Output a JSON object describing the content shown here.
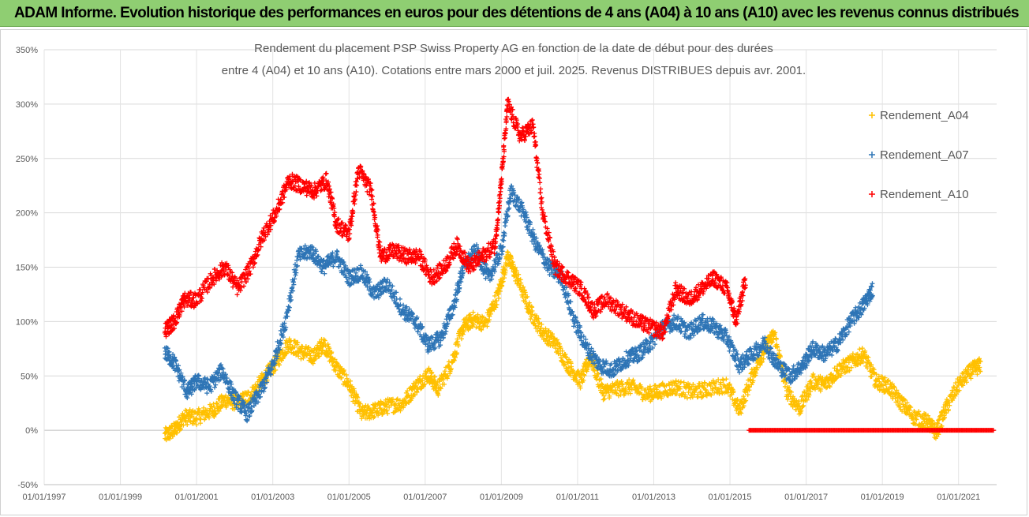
{
  "banner": {
    "text": "ADAM Informe. Evolution historique des performances en euros pour des détentions de 4 ans (A04) à 10 ans (A10) avec les revenus connus distribués"
  },
  "chart_data": {
    "type": "scatter",
    "title_line1": "Rendement du placement PSP Swiss Property AG en fonction de la date de début pour des durées",
    "title_line2": "entre 4 (A04) et 10 ans (A10). Cotations entre mars 2000 et juil. 2025. Revenus DISTRIBUES depuis avr. 2001.",
    "y_ticks": [
      "350%",
      "300%",
      "250%",
      "200%",
      "150%",
      "100%",
      "50%",
      "0%",
      "-50%"
    ],
    "x_ticks": [
      "01/01/1997",
      "01/01/1999",
      "01/01/2001",
      "01/01/2003",
      "01/01/2005",
      "01/01/2007",
      "01/01/2009",
      "01/01/2011",
      "01/01/2013",
      "01/01/2015",
      "01/01/2017",
      "01/01/2019",
      "01/01/2021"
    ],
    "ylim": [
      -50,
      350
    ],
    "xlim": [
      "1997-01-01",
      "2022-01-01"
    ],
    "grid": true,
    "legend_position": "right",
    "marker": "+",
    "series": [
      {
        "name": "Rendement_A04",
        "color": "#ffc000",
        "points": [
          [
            "2000-03",
            -5
          ],
          [
            "2000-06",
            0
          ],
          [
            "2000-09",
            12
          ],
          [
            "2001-01",
            12
          ],
          [
            "2001-06",
            18
          ],
          [
            "2001-10",
            28
          ],
          [
            "2002-02",
            25
          ],
          [
            "2002-06",
            32
          ],
          [
            "2002-10",
            47
          ],
          [
            "2003-02",
            62
          ],
          [
            "2003-06",
            80
          ],
          [
            "2003-10",
            72
          ],
          [
            "2004-02",
            68
          ],
          [
            "2004-05",
            80
          ],
          [
            "2004-09",
            58
          ],
          [
            "2005-01",
            42
          ],
          [
            "2005-05",
            15
          ],
          [
            "2005-09",
            18
          ],
          [
            "2006-01",
            22
          ],
          [
            "2006-06",
            25
          ],
          [
            "2006-10",
            40
          ],
          [
            "2007-02",
            52
          ],
          [
            "2007-05",
            38
          ],
          [
            "2007-09",
            60
          ],
          [
            "2008-01",
            95
          ],
          [
            "2008-04",
            102
          ],
          [
            "2008-08",
            98
          ],
          [
            "2008-12",
            125
          ],
          [
            "2009-03",
            160
          ],
          [
            "2009-06",
            140
          ],
          [
            "2009-10",
            110
          ],
          [
            "2010-02",
            90
          ],
          [
            "2010-06",
            80
          ],
          [
            "2010-10",
            60
          ],
          [
            "2011-02",
            45
          ],
          [
            "2011-05",
            68
          ],
          [
            "2011-09",
            35
          ],
          [
            "2012-01",
            38
          ],
          [
            "2012-06",
            40
          ],
          [
            "2012-11",
            33
          ],
          [
            "2013-03",
            36
          ],
          [
            "2013-08",
            40
          ],
          [
            "2014-01",
            35
          ],
          [
            "2014-06",
            38
          ],
          [
            "2014-12",
            42
          ],
          [
            "2015-04",
            18
          ],
          [
            "2015-08",
            50
          ],
          [
            "2015-12",
            75
          ],
          [
            "2016-03",
            88
          ],
          [
            "2016-07",
            35
          ],
          [
            "2016-11",
            20
          ],
          [
            "2017-03",
            45
          ],
          [
            "2017-07",
            42
          ],
          [
            "2017-11",
            55
          ],
          [
            "2018-03",
            62
          ],
          [
            "2018-07",
            70
          ],
          [
            "2018-11",
            45
          ],
          [
            "2019-03",
            40
          ],
          [
            "2019-07",
            25
          ],
          [
            "2019-11",
            12
          ],
          [
            "2020-03",
            8
          ],
          [
            "2020-06",
            -2
          ],
          [
            "2020-09",
            20
          ],
          [
            "2021-01",
            42
          ],
          [
            "2021-05",
            55
          ],
          [
            "2021-08",
            60
          ]
        ]
      },
      {
        "name": "Rendement_A07",
        "color": "#2e75b6",
        "points": [
          [
            "2000-03",
            72
          ],
          [
            "2000-06",
            62
          ],
          [
            "2000-10",
            35
          ],
          [
            "2001-01",
            45
          ],
          [
            "2001-05",
            40
          ],
          [
            "2001-09",
            55
          ],
          [
            "2002-01",
            30
          ],
          [
            "2002-05",
            15
          ],
          [
            "2002-09",
            35
          ],
          [
            "2003-01",
            60
          ],
          [
            "2003-05",
            100
          ],
          [
            "2003-09",
            160
          ],
          [
            "2004-01",
            165
          ],
          [
            "2004-05",
            150
          ],
          [
            "2004-09",
            160
          ],
          [
            "2005-01",
            140
          ],
          [
            "2005-05",
            145
          ],
          [
            "2005-09",
            125
          ],
          [
            "2006-01",
            135
          ],
          [
            "2006-06",
            110
          ],
          [
            "2006-10",
            100
          ],
          [
            "2007-02",
            78
          ],
          [
            "2007-06",
            85
          ],
          [
            "2007-10",
            115
          ],
          [
            "2008-01",
            150
          ],
          [
            "2008-05",
            165
          ],
          [
            "2008-09",
            140
          ],
          [
            "2009-01",
            165
          ],
          [
            "2009-04",
            220
          ],
          [
            "2009-08",
            200
          ],
          [
            "2009-12",
            170
          ],
          [
            "2010-04",
            150
          ],
          [
            "2010-08",
            140
          ],
          [
            "2010-12",
            100
          ],
          [
            "2011-04",
            75
          ],
          [
            "2011-08",
            60
          ],
          [
            "2011-12",
            55
          ],
          [
            "2012-04",
            65
          ],
          [
            "2012-08",
            70
          ],
          [
            "2012-12",
            80
          ],
          [
            "2013-04",
            95
          ],
          [
            "2013-08",
            100
          ],
          [
            "2013-12",
            90
          ],
          [
            "2014-04",
            100
          ],
          [
            "2014-08",
            95
          ],
          [
            "2014-12",
            85
          ],
          [
            "2015-04",
            60
          ],
          [
            "2015-08",
            70
          ],
          [
            "2015-12",
            80
          ],
          [
            "2016-04",
            60
          ],
          [
            "2016-08",
            50
          ],
          [
            "2016-12",
            60
          ],
          [
            "2017-03",
            75
          ],
          [
            "2017-07",
            70
          ],
          [
            "2017-11",
            80
          ],
          [
            "2018-03",
            100
          ],
          [
            "2018-07",
            115
          ],
          [
            "2018-10",
            130
          ]
        ]
      },
      {
        "name": "Rendement_A10",
        "color": "#ff0000",
        "points": [
          [
            "2000-03",
            92
          ],
          [
            "2000-06",
            100
          ],
          [
            "2000-09",
            120
          ],
          [
            "2001-01",
            120
          ],
          [
            "2001-06",
            140
          ],
          [
            "2001-10",
            150
          ],
          [
            "2002-02",
            130
          ],
          [
            "2002-06",
            150
          ],
          [
            "2002-10",
            180
          ],
          [
            "2003-02",
            200
          ],
          [
            "2003-06",
            230
          ],
          [
            "2003-10",
            225
          ],
          [
            "2004-02",
            220
          ],
          [
            "2004-06",
            230
          ],
          [
            "2004-09",
            190
          ],
          [
            "2005-01",
            180
          ],
          [
            "2005-04",
            240
          ],
          [
            "2005-08",
            220
          ],
          [
            "2005-11",
            160
          ],
          [
            "2006-03",
            165
          ],
          [
            "2006-07",
            160
          ],
          [
            "2006-11",
            160
          ],
          [
            "2007-03",
            140
          ],
          [
            "2007-07",
            150
          ],
          [
            "2007-11",
            170
          ],
          [
            "2008-03",
            150
          ],
          [
            "2008-07",
            160
          ],
          [
            "2008-11",
            170
          ],
          [
            "2009-01",
            230
          ],
          [
            "2009-03",
            300
          ],
          [
            "2009-07",
            270
          ],
          [
            "2009-11",
            280
          ],
          [
            "2010-02",
            200
          ],
          [
            "2010-06",
            150
          ],
          [
            "2010-10",
            140
          ],
          [
            "2011-02",
            130
          ],
          [
            "2011-06",
            110
          ],
          [
            "2011-10",
            120
          ],
          [
            "2012-03",
            110
          ],
          [
            "2012-08",
            100
          ],
          [
            "2012-12",
            95
          ],
          [
            "2013-04",
            90
          ],
          [
            "2013-08",
            130
          ],
          [
            "2013-12",
            120
          ],
          [
            "2014-04",
            130
          ],
          [
            "2014-08",
            140
          ],
          [
            "2014-12",
            130
          ],
          [
            "2015-03",
            100
          ],
          [
            "2015-06",
            140
          ]
        ],
        "flat_segment": {
          "from": "2015-07",
          "to": "2021-12",
          "value": 0
        }
      }
    ]
  }
}
